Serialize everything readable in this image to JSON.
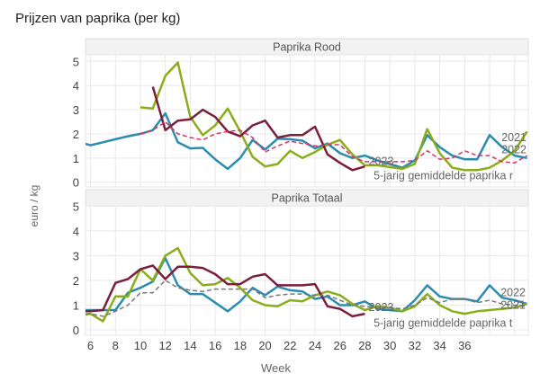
{
  "chart_data": [
    {
      "type": "line",
      "title": "Prijzen van paprika (per kg)",
      "panel": "Paprika Rood",
      "xlabel": "Week",
      "ylabel": "euro / kg",
      "xlim": [
        5.6,
        41.1
      ],
      "ylim": [
        0,
        5
      ],
      "yticks": [
        "0",
        "1",
        "2",
        "3",
        "4",
        "5"
      ],
      "grid": true,
      "series": [
        {
          "name": "2022",
          "color": "#2b8cb0",
          "dash": false,
          "label_at_end": "2022",
          "x": [
            5.6,
            6,
            7,
            8,
            9,
            10,
            11,
            12,
            13,
            14,
            15,
            16,
            17,
            18,
            19,
            20,
            21,
            22,
            23,
            24,
            25,
            26,
            27,
            28,
            29,
            31,
            32,
            33,
            34,
            35,
            36,
            37,
            38,
            39,
            40,
            41
          ],
          "y": [
            1.59,
            1.53,
            1.65,
            1.78,
            1.9,
            2.0,
            2.15,
            2.85,
            1.65,
            1.4,
            1.42,
            0.95,
            0.55,
            1.0,
            1.75,
            1.35,
            1.8,
            1.78,
            1.72,
            1.4,
            1.6,
            1.2,
            1.0,
            1.1,
            0.9,
            0.6,
            0.9,
            1.95,
            1.45,
            1.1,
            0.95,
            0.95,
            1.95,
            1.45,
            1.1,
            1.0
          ]
        },
        {
          "name": "2021",
          "color": "#8aad1a",
          "dash": false,
          "label_at_end": "2021",
          "x": [
            10,
            11,
            12,
            13,
            14,
            15,
            16,
            17,
            18,
            19,
            20,
            21,
            22,
            23,
            24,
            25,
            26,
            27,
            28,
            29,
            31,
            32,
            33,
            34,
            35,
            36,
            37,
            38,
            39,
            40,
            41
          ],
          "y": [
            3.1,
            3.05,
            4.4,
            4.95,
            2.7,
            1.95,
            2.35,
            3.05,
            2.1,
            1.05,
            0.65,
            0.75,
            1.3,
            1.0,
            1.25,
            1.55,
            1.75,
            1.15,
            0.7,
            0.7,
            0.55,
            0.75,
            2.2,
            1.2,
            0.6,
            0.5,
            0.5,
            0.6,
            0.9,
            1.3,
            2.1
          ]
        },
        {
          "name": "2023",
          "color": "#7a1f3d",
          "dash": false,
          "label_at_end": "2023",
          "x": [
            11,
            12,
            13,
            14,
            15,
            16,
            17,
            18,
            19,
            20,
            21,
            22,
            23,
            24,
            25,
            26,
            27,
            28
          ],
          "y": [
            3.95,
            2.15,
            2.55,
            2.6,
            3.0,
            2.7,
            2.1,
            1.9,
            2.35,
            2.55,
            1.85,
            1.95,
            1.95,
            2.3,
            1.15,
            0.8,
            0.5,
            0.65
          ]
        },
        {
          "name": "5-jarig gemiddelde paprika r",
          "color": "#d6336c",
          "dash": true,
          "label_at_end": "5-jarig gemiddelde paprika r",
          "x": [
            10,
            11,
            12,
            13,
            14,
            15,
            16,
            17,
            18,
            19,
            20,
            21,
            22,
            23,
            24,
            25,
            26,
            27,
            28,
            29,
            30,
            31,
            32,
            33,
            34,
            35,
            36,
            37,
            38,
            39,
            40,
            41
          ],
          "y": [
            2.0,
            2.15,
            2.5,
            2.0,
            1.85,
            1.75,
            2.0,
            2.1,
            2.15,
            1.85,
            1.25,
            1.5,
            1.7,
            1.6,
            1.5,
            1.55,
            1.55,
            1.05,
            0.85,
            0.85,
            0.85,
            0.85,
            0.9,
            1.3,
            0.95,
            1.0,
            1.3,
            1.1,
            1.1,
            0.85,
            0.8,
            1.1
          ]
        }
      ]
    },
    {
      "type": "line",
      "panel": "Paprika Totaal",
      "xlabel": "Week",
      "ylabel": "euro / kg",
      "xlim": [
        5.6,
        41.1
      ],
      "ylim": [
        0,
        5
      ],
      "xticks": [
        "6",
        "8",
        "10",
        "12",
        "14",
        "16",
        "18",
        "20",
        "22",
        "24",
        "26",
        "28",
        "30",
        "32",
        "34",
        "36"
      ],
      "yticks": [
        "0",
        "1",
        "2",
        "3",
        "4",
        "5"
      ],
      "grid": true,
      "series": [
        {
          "name": "2022",
          "color": "#2b8cb0",
          "dash": false,
          "label_at_end": "2022",
          "x": [
            5.6,
            6,
            7,
            8,
            9,
            10,
            11,
            12,
            13,
            14,
            15,
            16,
            17,
            18,
            19,
            20,
            21,
            22,
            23,
            24,
            25,
            26,
            27,
            28,
            29,
            30,
            31,
            32,
            33,
            34,
            35,
            36,
            37,
            38,
            39,
            40,
            41
          ],
          "y": [
            0.8,
            0.8,
            0.8,
            0.8,
            1.5,
            1.7,
            1.95,
            2.9,
            1.8,
            1.45,
            1.45,
            1.1,
            0.75,
            1.15,
            1.7,
            1.4,
            1.75,
            1.6,
            1.55,
            1.25,
            1.35,
            1.0,
            1.0,
            1.15,
            0.85,
            0.8,
            0.75,
            1.2,
            1.8,
            1.35,
            1.25,
            1.25,
            1.15,
            1.8,
            1.3,
            1.2,
            1.05
          ]
        },
        {
          "name": "2021",
          "color": "#8aad1a",
          "dash": false,
          "label_at_end": "2021",
          "x": [
            5.6,
            6,
            7,
            8,
            9,
            10,
            11,
            12,
            13,
            14,
            15,
            16,
            17,
            18,
            19,
            20,
            21,
            22,
            23,
            24,
            25,
            26,
            27,
            28,
            29,
            30,
            31,
            32,
            33,
            34,
            35,
            36,
            37,
            38,
            39,
            40,
            41
          ],
          "y": [
            0.62,
            0.65,
            0.35,
            1.35,
            1.35,
            2.45,
            2.0,
            3.0,
            3.3,
            2.3,
            1.8,
            1.85,
            2.1,
            1.7,
            1.2,
            1.0,
            0.95,
            1.2,
            1.15,
            1.4,
            1.55,
            1.4,
            1.05,
            0.8,
            0.95,
            0.9,
            0.75,
            0.95,
            1.45,
            1.0,
            0.75,
            0.65,
            0.75,
            0.8,
            0.85,
            0.9,
            1.05
          ]
        },
        {
          "name": "2023",
          "color": "#7a1f3d",
          "dash": false,
          "label_at_end": "2023",
          "x": [
            5.6,
            6,
            7,
            8,
            9,
            10,
            11,
            12,
            13,
            14,
            15,
            16,
            17,
            18,
            19,
            20,
            21,
            22,
            23,
            24,
            25,
            26,
            27,
            28
          ],
          "y": [
            0.75,
            0.75,
            0.8,
            1.9,
            2.05,
            2.45,
            2.6,
            2.05,
            2.55,
            2.55,
            2.5,
            2.25,
            1.85,
            1.85,
            2.15,
            2.25,
            1.8,
            1.8,
            1.8,
            1.85,
            0.95,
            0.85,
            0.55,
            0.65
          ]
        },
        {
          "name": "5-jarig gemiddelde paprika t",
          "color": "#777777",
          "dash": true,
          "label_at_end": "5-jarig gemiddelde paprika t",
          "x": [
            5.6,
            6,
            7,
            8,
            9,
            10,
            11,
            12,
            13,
            14,
            15,
            16,
            17,
            18,
            19,
            20,
            21,
            22,
            23,
            24,
            25,
            26,
            27,
            28,
            29,
            30,
            31,
            32,
            33,
            34,
            35,
            36,
            37,
            38,
            39,
            40,
            41
          ],
          "y": [
            0.65,
            0.65,
            0.55,
            0.75,
            1.0,
            1.5,
            1.5,
            2.0,
            1.7,
            1.6,
            1.55,
            1.65,
            1.65,
            1.65,
            1.65,
            1.3,
            1.4,
            1.45,
            1.45,
            1.4,
            1.4,
            1.2,
            1.0,
            0.95,
            0.9,
            0.9,
            0.85,
            1.0,
            1.3,
            1.1,
            1.25,
            1.25,
            1.1,
            1.2,
            1.05,
            1.0,
            0.95
          ]
        }
      ]
    }
  ]
}
